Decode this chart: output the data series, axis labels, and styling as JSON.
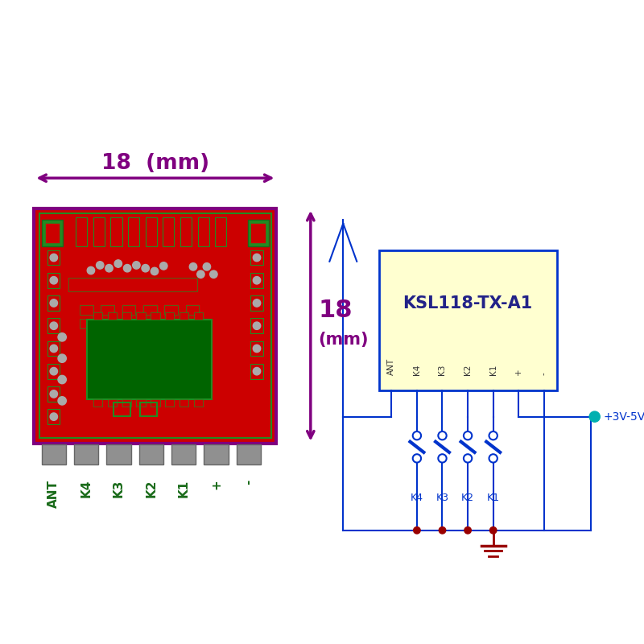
{
  "bg_color": "#ffffff",
  "board_color": "#cc0000",
  "green_pcb": "#228B22",
  "green_dark": "#1a6b1a",
  "gray_pad": "#909090",
  "chip_green": "#006400",
  "purple": "#800080",
  "blue": "#0033cc",
  "dark_red": "#990000",
  "cyan": "#00b0b0",
  "dim_label_h": "18  (mm)",
  "dim_label_v": "18",
  "dim_label_v2": "(mm)",
  "module_label": "KSL118-TX-A1",
  "pin_labels": [
    "ANT",
    "K4",
    "K3",
    "K2",
    "K1",
    "+",
    "-"
  ],
  "switch_labels": [
    "K1",
    "K2",
    "K3",
    "K4"
  ],
  "voltage_label": "+3V-5V",
  "pcb_pins": [
    "ANT",
    "K4",
    "K3",
    "K2",
    "K1",
    "+",
    "-"
  ]
}
